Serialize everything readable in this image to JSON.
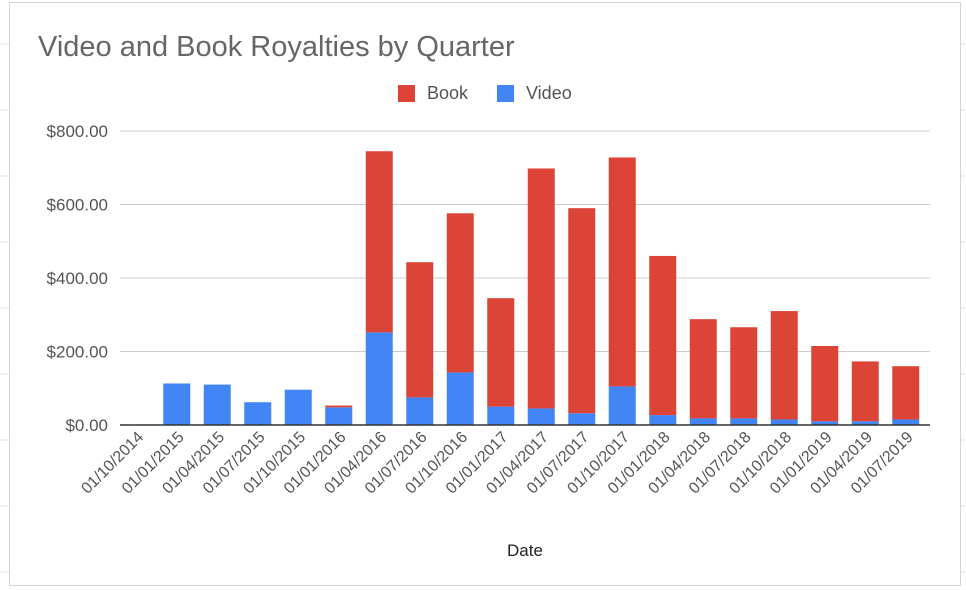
{
  "chart_data": {
    "type": "bar",
    "stacked": true,
    "title": "Video and Book Royalties by Quarter",
    "xlabel": "Date",
    "ylabel": "",
    "ylim": [
      0,
      800
    ],
    "yticks": [
      "$0.00",
      "$200.00",
      "$400.00",
      "$600.00",
      "$800.00"
    ],
    "grid": true,
    "legend_position": "top",
    "categories": [
      "01/10/2014",
      "01/01/2015",
      "01/04/2015",
      "01/07/2015",
      "01/10/2015",
      "01/01/2016",
      "01/04/2016",
      "01/07/2016",
      "01/10/2016",
      "01/01/2017",
      "01/04/2017",
      "01/07/2017",
      "01/10/2017",
      "01/01/2018",
      "01/04/2018",
      "01/07/2018",
      "01/10/2018",
      "01/01/2019",
      "01/04/2019",
      "01/07/2019"
    ],
    "series": [
      {
        "name": "Video",
        "color": "#4285f4",
        "values": [
          0,
          113,
          110,
          62,
          96,
          48,
          252,
          75,
          143,
          50,
          45,
          32,
          105,
          27,
          18,
          18,
          15,
          10,
          10,
          15
        ]
      },
      {
        "name": "Book",
        "color": "#db4437",
        "values": [
          0,
          0,
          0,
          0,
          0,
          5,
          493,
          368,
          433,
          295,
          653,
          558,
          623,
          433,
          270,
          248,
          295,
          205,
          163,
          145
        ]
      }
    ],
    "legend_order": [
      "Book",
      "Video"
    ]
  }
}
